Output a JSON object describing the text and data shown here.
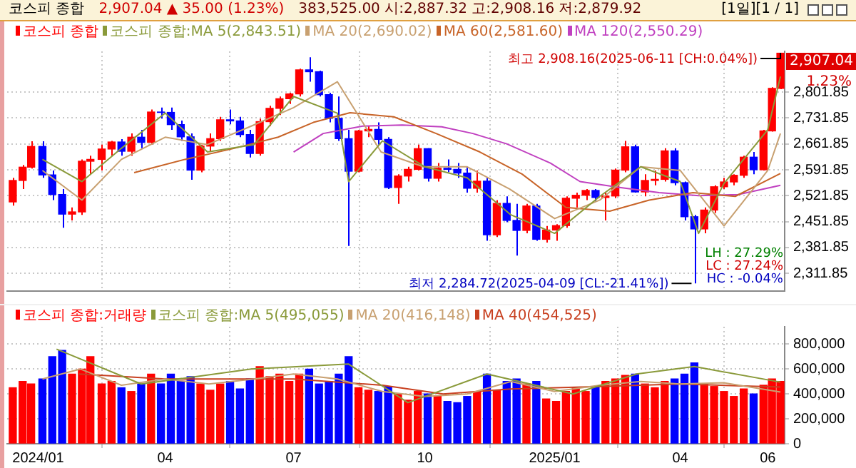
{
  "chart_data": [
    {
      "type": "candlestick",
      "title": "코스피 종합",
      "subtitle": "2,907.04 ▲ 35.00 (1.23%)",
      "x": [
        "2023-12-15",
        "2023-12-22",
        "2023-12-28",
        "2024-01-05",
        "2024-01-12",
        "2024-01-19",
        "2024-01-26",
        "2024-02-02",
        "2024-02-08",
        "2024-02-16",
        "2024-02-23",
        "2024-03-01",
        "2024-03-08",
        "2024-03-15",
        "2024-03-22",
        "2024-03-29",
        "2024-04-05",
        "2024-04-12",
        "2024-04-19",
        "2024-04-26",
        "2024-05-03",
        "2024-05-10",
        "2024-05-17",
        "2024-05-24",
        "2024-05-31",
        "2024-06-07",
        "2024-06-14",
        "2024-06-21",
        "2024-06-28",
        "2024-07-05",
        "2024-07-12",
        "2024-07-19",
        "2024-07-26",
        "2024-08-02",
        "2024-08-09",
        "2024-08-16",
        "2024-08-23",
        "2024-08-30",
        "2024-09-06",
        "2024-09-13",
        "2024-09-20",
        "2024-09-27",
        "2024-10-04",
        "2024-10-11",
        "2024-10-18",
        "2024-10-25",
        "2024-11-01",
        "2024-11-08",
        "2024-11-15",
        "2024-11-22",
        "2024-11-29",
        "2024-12-06",
        "2024-12-13",
        "2024-12-20",
        "2024-12-27",
        "2025-01-03",
        "2025-01-10",
        "2025-01-17",
        "2025-01-24",
        "2025-01-31",
        "2025-02-07",
        "2025-02-14",
        "2025-02-21",
        "2025-02-28",
        "2025-03-07",
        "2025-03-14",
        "2025-03-21",
        "2025-03-28",
        "2025-04-04",
        "2025-04-11",
        "2025-04-18",
        "2025-04-25",
        "2025-05-02",
        "2025-05-09",
        "2025-05-16",
        "2025-05-23",
        "2025-05-30",
        "2025-06-05",
        "2025-06-11"
      ],
      "series": [
        {
          "name": "코스피 종합",
          "ohlc": [
            [
              2505,
              2570,
              2495,
              2563
            ],
            [
              2563,
              2605,
              2540,
              2599
            ],
            [
              2599,
              2669,
              2595,
              2655
            ],
            [
              2655,
              2669,
              2570,
              2578
            ],
            [
              2578,
              2590,
              2510,
              2525
            ],
            [
              2525,
              2540,
              2435,
              2472
            ],
            [
              2472,
              2490,
              2455,
              2478
            ],
            [
              2478,
              2620,
              2470,
              2615
            ],
            [
              2615,
              2630,
              2580,
              2620
            ],
            [
              2620,
              2660,
              2590,
              2648
            ],
            [
              2648,
              2670,
              2630,
              2667
            ],
            [
              2667,
              2675,
              2630,
              2642
            ],
            [
              2642,
              2690,
              2630,
              2680
            ],
            [
              2680,
              2700,
              2650,
              2666
            ],
            [
              2666,
              2755,
              2660,
              2748
            ],
            [
              2748,
              2760,
              2730,
              2747
            ],
            [
              2747,
              2760,
              2700,
              2714
            ],
            [
              2714,
              2725,
              2670,
              2681
            ],
            [
              2681,
              2690,
              2565,
              2591
            ],
            [
              2591,
              2660,
              2585,
              2656
            ],
            [
              2656,
              2690,
              2640,
              2676
            ],
            [
              2676,
              2735,
              2670,
              2727
            ],
            [
              2727,
              2755,
              2715,
              2724
            ],
            [
              2724,
              2735,
              2680,
              2687
            ],
            [
              2687,
              2700,
              2625,
              2636
            ],
            [
              2636,
              2730,
              2630,
              2722
            ],
            [
              2722,
              2765,
              2710,
              2758
            ],
            [
              2758,
              2790,
              2740,
              2784
            ],
            [
              2784,
              2800,
              2770,
              2797
            ],
            [
              2797,
              2865,
              2790,
              2862
            ],
            [
              2862,
              2896,
              2830,
              2857
            ],
            [
              2857,
              2860,
              2790,
              2795
            ],
            [
              2795,
              2800,
              2720,
              2731
            ],
            [
              2731,
              2790,
              2670,
              2676
            ],
            [
              2676,
              2700,
              2386,
              2588
            ],
            [
              2588,
              2700,
              2585,
              2697
            ],
            [
              2697,
              2710,
              2680,
              2701
            ],
            [
              2701,
              2720,
              2660,
              2674
            ],
            [
              2674,
              2680,
              2540,
              2544
            ],
            [
              2544,
              2580,
              2500,
              2575
            ],
            [
              2575,
              2600,
              2560,
              2593
            ],
            [
              2593,
              2660,
              2590,
              2649
            ],
            [
              2649,
              2650,
              2560,
              2569
            ],
            [
              2569,
              2610,
              2560,
              2596
            ],
            [
              2596,
              2620,
              2585,
              2593
            ],
            [
              2593,
              2610,
              2570,
              2583
            ],
            [
              2583,
              2600,
              2530,
              2542
            ],
            [
              2542,
              2590,
              2530,
              2561
            ],
            [
              2561,
              2570,
              2400,
              2416
            ],
            [
              2416,
              2510,
              2410,
              2501
            ],
            [
              2501,
              2520,
              2450,
              2455
            ],
            [
              2455,
              2500,
              2360,
              2428
            ],
            [
              2428,
              2500,
              2420,
              2494
            ],
            [
              2494,
              2500,
              2400,
              2404
            ],
            [
              2404,
              2440,
              2395,
              2429
            ],
            [
              2429,
              2445,
              2400,
              2441
            ],
            [
              2441,
              2520,
              2435,
              2515
            ],
            [
              2515,
              2530,
              2490,
              2523
            ],
            [
              2523,
              2540,
              2510,
              2536
            ],
            [
              2536,
              2540,
              2505,
              2517
            ],
            [
              2517,
              2530,
              2455,
              2521
            ],
            [
              2521,
              2595,
              2515,
              2591
            ],
            [
              2591,
              2670,
              2585,
              2654
            ],
            [
              2654,
              2660,
              2530,
              2532
            ],
            [
              2532,
              2580,
              2520,
              2563
            ],
            [
              2563,
              2590,
              2550,
              2566
            ],
            [
              2566,
              2650,
              2560,
              2643
            ],
            [
              2643,
              2650,
              2550,
              2557
            ],
            [
              2557,
              2560,
              2455,
              2465
            ],
            [
              2465,
              2470,
              2284.72,
              2432
            ],
            [
              2432,
              2490,
              2420,
              2483
            ],
            [
              2483,
              2550,
              2475,
              2546
            ],
            [
              2546,
              2570,
              2540,
              2559
            ],
            [
              2559,
              2580,
              2550,
              2577
            ],
            [
              2577,
              2630,
              2570,
              2626
            ],
            [
              2626,
              2640,
              2580,
              2592
            ],
            [
              2592,
              2700,
              2590,
              2697
            ],
            [
              2697,
              2815,
              2695,
              2812
            ],
            [
              2812,
              2908.16,
              2810,
              2907.04
            ]
          ],
          "colors": [
            "#ff0000",
            "#ff0000",
            "#ff0000",
            "#0000ff",
            "#0000ff",
            "#0000ff",
            "#ff0000",
            "#ff0000",
            "#ff0000",
            "#ff0000",
            "#ff0000",
            "#0000ff",
            "#ff0000",
            "#0000ff",
            "#ff0000",
            "#0000ff",
            "#0000ff",
            "#0000ff",
            "#0000ff",
            "#ff0000",
            "#ff0000",
            "#ff0000",
            "#0000ff",
            "#0000ff",
            "#0000ff",
            "#ff0000",
            "#ff0000",
            "#ff0000",
            "#ff0000",
            "#ff0000",
            "#0000ff",
            "#0000ff",
            "#0000ff",
            "#0000ff",
            "#0000ff",
            "#ff0000",
            "#ff0000",
            "#0000ff",
            "#0000ff",
            "#ff0000",
            "#ff0000",
            "#ff0000",
            "#0000ff",
            "#ff0000",
            "#0000ff",
            "#0000ff",
            "#0000ff",
            "#ff0000",
            "#0000ff",
            "#ff0000",
            "#0000ff",
            "#0000ff",
            "#ff0000",
            "#0000ff",
            "#ff0000",
            "#ff0000",
            "#ff0000",
            "#ff0000",
            "#ff0000",
            "#0000ff",
            "#ff0000",
            "#ff0000",
            "#ff0000",
            "#0000ff",
            "#ff0000",
            "#ff0000",
            "#ff0000",
            "#0000ff",
            "#0000ff",
            "#0000ff",
            "#ff0000",
            "#ff0000",
            "#ff0000",
            "#ff0000",
            "#ff0000",
            "#0000ff",
            "#ff0000",
            "#ff0000",
            "#ff0000"
          ]
        },
        {
          "name": "코스피 종합:MA 5(2,843.51)",
          "type": "line",
          "color": "#8a9a3a",
          "x": [
            "2024-01-05",
            "2024-02-02",
            "2024-03-01",
            "2024-04-01",
            "2024-05-01",
            "2024-06-03",
            "2024-07-01",
            "2024-08-01",
            "2024-08-09",
            "2024-09-02",
            "2024-10-02",
            "2024-11-01",
            "2024-12-02",
            "2025-01-02",
            "2025-02-03",
            "2025-03-04",
            "2025-04-01",
            "2025-04-14",
            "2025-05-02",
            "2025-06-02",
            "2025-06-11"
          ],
          "values": [
            2620,
            2560,
            2650,
            2745,
            2640,
            2660,
            2790,
            2745,
            2560,
            2670,
            2600,
            2570,
            2470,
            2420,
            2520,
            2600,
            2560,
            2420,
            2555,
            2700,
            2844
          ]
        },
        {
          "name": "MA 20(2,690.02)",
          "type": "line",
          "color": "#c8a070",
          "x": [
            "2024-01-05",
            "2024-02-02",
            "2024-03-01",
            "2024-04-01",
            "2024-05-01",
            "2024-06-01",
            "2024-07-01",
            "2024-08-01",
            "2024-09-01",
            "2024-10-01",
            "2024-11-01",
            "2024-12-01",
            "2025-01-02",
            "2025-02-03",
            "2025-03-04",
            "2025-04-01",
            "2025-05-02",
            "2025-06-02",
            "2025-06-11"
          ],
          "values": [
            2590,
            2510,
            2620,
            2680,
            2660,
            2710,
            2760,
            2830,
            2640,
            2600,
            2600,
            2540,
            2460,
            2510,
            2600,
            2590,
            2440,
            2590,
            2690
          ]
        },
        {
          "name": "MA 60(2,581.60)",
          "type": "line",
          "color": "#c86428",
          "x": [
            "2024-03-10",
            "2024-04-15",
            "2024-05-20",
            "2024-06-20",
            "2024-07-15",
            "2024-08-10",
            "2024-09-10",
            "2024-10-10",
            "2024-11-10",
            "2024-12-10",
            "2025-01-10",
            "2025-02-10",
            "2025-03-10",
            "2025-04-10",
            "2025-05-10",
            "2025-06-11"
          ],
          "values": [
            2584,
            2620,
            2650,
            2680,
            2720,
            2746,
            2735,
            2690,
            2640,
            2580,
            2490,
            2480,
            2510,
            2530,
            2520,
            2582
          ]
        },
        {
          "name": "MA 120(2,550.29)",
          "type": "line",
          "color": "#c040c0",
          "x": [
            "2024-07-01",
            "2024-07-22",
            "2024-08-19",
            "2024-09-16",
            "2024-10-14",
            "2024-11-05",
            "2024-11-29",
            "2024-12-30",
            "2025-01-20",
            "2025-02-17",
            "2025-03-17",
            "2025-04-14",
            "2025-05-12",
            "2025-06-11"
          ],
          "values": [
            2640,
            2690,
            2710,
            2713,
            2708,
            2690,
            2662,
            2610,
            2560,
            2544,
            2530,
            2522,
            2525,
            2550
          ]
        }
      ],
      "xlim": [
        "2023-12-11",
        "2025-06-14"
      ],
      "xticks": [
        {
          "value": "2024-01-02",
          "label": null
        },
        {
          "value": "2024-04-01",
          "label": null
        },
        {
          "value": "2024-07-01",
          "label": null
        },
        {
          "value": "2024-10-02",
          "label": null
        },
        {
          "value": "2025-01-02",
          "label": null
        },
        {
          "value": "2025-04-01",
          "label": null
        },
        {
          "value": "2025-06-02",
          "label": null
        }
      ],
      "ylim": [
        2264,
        2912
      ],
      "yticks": [
        {
          "value": 2311.85,
          "label": "2,311.85"
        },
        {
          "value": 2381.85,
          "label": "2,381.85"
        },
        {
          "value": 2451.85,
          "label": "2,451.85"
        },
        {
          "value": 2521.85,
          "label": "2,521.85"
        },
        {
          "value": 2591.85,
          "label": "2,591.85"
        },
        {
          "value": 2661.85,
          "label": "2,661.85"
        },
        {
          "value": 2731.85,
          "label": "2,731.85"
        },
        {
          "value": 2801.85,
          "label": "2,801.85"
        }
      ],
      "tick_labels": "y",
      "grid": true,
      "legend": "top left",
      "annotations": [
        "383,525.00  시:2,887.32 고:2,908.16 저:2,879.92",
        "[1일][1 / 1]",
        "1.23%",
        "LH : 27.29%",
        "LC : 27.24%",
        "HC : -0.04%",
        "2,907.04",
        {
          "text": "최고 2,908.16(2025-06-11 [CH:0.04%])",
          "x": "2025-06-11",
          "y": 2908.16
        },
        {
          "text": "최저 2,284.72(2025-04-09 [CL:-21.41%])",
          "x": "2025-04-09",
          "y": 2284.72
        }
      ]
    },
    {
      "type": "bar",
      "x": [
        "2023-12-15",
        "2023-12-22",
        "2023-12-28",
        "2024-01-05",
        "2024-01-12",
        "2024-01-19",
        "2024-01-26",
        "2024-02-02",
        "2024-02-08",
        "2024-02-16",
        "2024-02-23",
        "2024-03-01",
        "2024-03-08",
        "2024-03-15",
        "2024-03-22",
        "2024-03-29",
        "2024-04-05",
        "2024-04-12",
        "2024-04-19",
        "2024-04-26",
        "2024-05-03",
        "2024-05-10",
        "2024-05-17",
        "2024-05-24",
        "2024-05-31",
        "2024-06-07",
        "2024-06-14",
        "2024-06-21",
        "2024-06-28",
        "2024-07-05",
        "2024-07-12",
        "2024-07-19",
        "2024-07-26",
        "2024-08-02",
        "2024-08-09",
        "2024-08-16",
        "2024-08-23",
        "2024-08-30",
        "2024-09-06",
        "2024-09-13",
        "2024-09-20",
        "2024-09-27",
        "2024-10-04",
        "2024-10-11",
        "2024-10-18",
        "2024-10-25",
        "2024-11-01",
        "2024-11-08",
        "2024-11-15",
        "2024-11-22",
        "2024-11-29",
        "2024-12-06",
        "2024-12-13",
        "2024-12-20",
        "2024-12-27",
        "2025-01-03",
        "2025-01-10",
        "2025-01-17",
        "2025-01-24",
        "2025-01-31",
        "2025-02-07",
        "2025-02-14",
        "2025-02-21",
        "2025-02-28",
        "2025-03-07",
        "2025-03-14",
        "2025-03-21",
        "2025-03-28",
        "2025-04-04",
        "2025-04-11",
        "2025-04-18",
        "2025-04-25",
        "2025-05-02",
        "2025-05-09",
        "2025-05-16",
        "2025-05-23",
        "2025-05-30",
        "2025-06-05",
        "2025-06-11"
      ],
      "series": [
        {
          "name": "코스피 종합:거래량",
          "values": [
            450000,
            500000,
            480000,
            520000,
            700000,
            750000,
            560000,
            600000,
            700000,
            480000,
            500000,
            450000,
            420000,
            480000,
            560000,
            480000,
            560000,
            500000,
            540000,
            480000,
            430000,
            480000,
            500000,
            440000,
            520000,
            620000,
            540000,
            560000,
            500000,
            560000,
            600000,
            480000,
            500000,
            560000,
            700000,
            450000,
            430000,
            420000,
            460000,
            400000,
            350000,
            420000,
            400000,
            380000,
            340000,
            330000,
            380000,
            420000,
            560000,
            430000,
            500000,
            520000,
            480000,
            500000,
            360000,
            340000,
            420000,
            450000,
            420000,
            460000,
            500000,
            520000,
            550000,
            560000,
            480000,
            450000,
            500000,
            520000,
            560000,
            650000,
            480000,
            460000,
            420000,
            380000,
            440000,
            400000,
            470000,
            520000,
            500000
          ],
          "colors": [
            "#ff0000",
            "#ff0000",
            "#ff0000",
            "#0000ff",
            "#0000ff",
            "#0000ff",
            "#ff0000",
            "#ff0000",
            "#ff0000",
            "#ff0000",
            "#ff0000",
            "#0000ff",
            "#ff0000",
            "#0000ff",
            "#ff0000",
            "#0000ff",
            "#0000ff",
            "#0000ff",
            "#0000ff",
            "#ff0000",
            "#ff0000",
            "#ff0000",
            "#0000ff",
            "#0000ff",
            "#0000ff",
            "#ff0000",
            "#ff0000",
            "#ff0000",
            "#ff0000",
            "#ff0000",
            "#0000ff",
            "#0000ff",
            "#0000ff",
            "#0000ff",
            "#0000ff",
            "#ff0000",
            "#ff0000",
            "#0000ff",
            "#0000ff",
            "#ff0000",
            "#ff0000",
            "#ff0000",
            "#0000ff",
            "#ff0000",
            "#0000ff",
            "#0000ff",
            "#0000ff",
            "#ff0000",
            "#0000ff",
            "#ff0000",
            "#0000ff",
            "#0000ff",
            "#ff0000",
            "#0000ff",
            "#ff0000",
            "#ff0000",
            "#ff0000",
            "#ff0000",
            "#ff0000",
            "#0000ff",
            "#ff0000",
            "#ff0000",
            "#ff0000",
            "#0000ff",
            "#ff0000",
            "#ff0000",
            "#ff0000",
            "#0000ff",
            "#0000ff",
            "#0000ff",
            "#ff0000",
            "#ff0000",
            "#ff0000",
            "#ff0000",
            "#ff0000",
            "#0000ff",
            "#ff0000",
            "#ff0000",
            "#ff0000"
          ]
        },
        {
          "name": "코스피 종합:MA 5(495,055)",
          "type": "line",
          "color": "#8a9a3a",
          "x": [
            "2024-01-15",
            "2024-03-15",
            "2024-06-01",
            "2024-08-09",
            "2024-09-20",
            "2024-11-15",
            "2025-01-15",
            "2025-03-01",
            "2025-04-11",
            "2025-06-11"
          ],
          "values": [
            760000,
            480000,
            600000,
            640000,
            330000,
            560000,
            400000,
            560000,
            620000,
            495000
          ]
        },
        {
          "name": "MA 20(416,148)",
          "type": "line",
          "color": "#c8a070",
          "x": [
            "2024-01-05",
            "2024-02-01",
            "2024-03-01",
            "2024-04-01",
            "2024-05-02",
            "2024-06-03",
            "2024-07-01",
            "2024-08-01",
            "2024-09-02",
            "2024-10-02",
            "2024-11-01",
            "2024-12-02",
            "2025-01-02",
            "2025-02-03",
            "2025-03-04",
            "2025-04-01",
            "2025-05-02",
            "2025-06-11"
          ],
          "values": [
            520000,
            600000,
            470000,
            520000,
            480000,
            520000,
            560000,
            520000,
            420000,
            380000,
            400000,
            500000,
            420000,
            470000,
            500000,
            480000,
            490000,
            416000
          ]
        },
        {
          "name": "MA 40(454,525)",
          "type": "line",
          "color": "#c84020",
          "x": [
            "2024-01-31",
            "2024-04-01",
            "2024-07-01",
            "2024-09-02",
            "2024-10-15",
            "2024-12-02",
            "2025-02-03",
            "2025-04-01",
            "2025-06-11"
          ],
          "values": [
            560000,
            520000,
            520000,
            470000,
            400000,
            440000,
            460000,
            480000,
            455000
          ]
        }
      ],
      "xlim": [
        "2023-12-11",
        "2025-06-14"
      ],
      "xticks": [
        {
          "value": "2024-01-02",
          "label": "2024/01"
        },
        {
          "value": "2024-04-01",
          "label": "04"
        },
        {
          "value": "2024-07-01",
          "label": "07"
        },
        {
          "value": "2024-10-02",
          "label": "10"
        },
        {
          "value": "2025-01-02",
          "label": "2025/01"
        },
        {
          "value": "2025-04-01",
          "label": "04"
        },
        {
          "value": "2025-06-02",
          "label": "06"
        }
      ],
      "ylim": [
        0,
        940000
      ],
      "yticks": [
        0,
        {
          "value": 200000,
          "label": "200,000"
        },
        {
          "value": 400000,
          "label": "400,000"
        },
        {
          "value": 600000,
          "label": "600,000"
        },
        {
          "value": 800000,
          "label": "800,000"
        }
      ],
      "grid": true,
      "legend": "top left"
    }
  ]
}
